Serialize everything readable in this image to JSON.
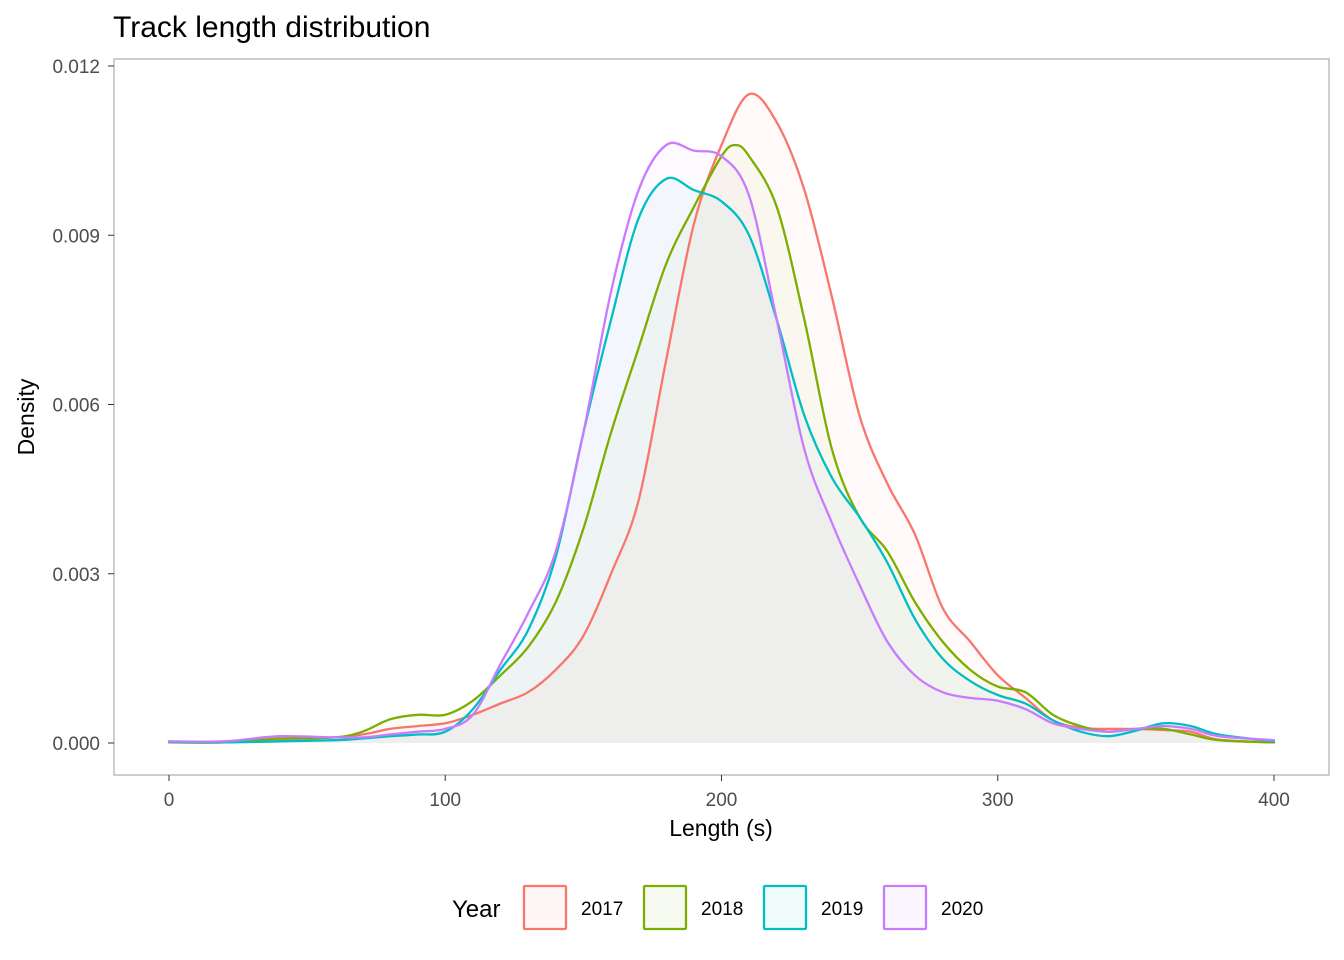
{
  "chart_data": {
    "type": "area",
    "title": "Track length distribution",
    "xlabel": "Length (s)",
    "ylabel": "Density",
    "xlim": [
      0,
      400
    ],
    "ylim": [
      0,
      0.012
    ],
    "x_ticks": [
      0,
      100,
      200,
      300,
      400
    ],
    "x_tick_labels": [
      "0",
      "100",
      "200",
      "300",
      "400"
    ],
    "y_ticks": [
      0,
      0.003,
      0.006,
      0.009,
      0.012
    ],
    "y_tick_labels": [
      "0.000",
      "0.003",
      "0.006",
      "0.009",
      "0.012"
    ],
    "grid": false,
    "legend": {
      "title": "Year",
      "position": "bottom"
    },
    "series": [
      {
        "name": "2017",
        "color": "#F8766D",
        "points": [
          [
            0,
            2e-05
          ],
          [
            20,
            1e-05
          ],
          [
            40,
            6e-05
          ],
          [
            60,
            0.0001
          ],
          [
            70,
            0.00015
          ],
          [
            80,
            0.00025
          ],
          [
            90,
            0.0003
          ],
          [
            100,
            0.00035
          ],
          [
            110,
            0.0005
          ],
          [
            120,
            0.0007
          ],
          [
            130,
            0.0009
          ],
          [
            140,
            0.0013
          ],
          [
            150,
            0.0019
          ],
          [
            160,
            0.003
          ],
          [
            170,
            0.0043
          ],
          [
            180,
            0.0068
          ],
          [
            190,
            0.0092
          ],
          [
            200,
            0.0106
          ],
          [
            210,
            0.0115
          ],
          [
            220,
            0.011
          ],
          [
            230,
            0.0098
          ],
          [
            240,
            0.0079
          ],
          [
            250,
            0.0058
          ],
          [
            260,
            0.0046
          ],
          [
            270,
            0.0037
          ],
          [
            280,
            0.0024
          ],
          [
            290,
            0.0018
          ],
          [
            300,
            0.0012
          ],
          [
            310,
            0.0008
          ],
          [
            320,
            0.0004
          ],
          [
            330,
            0.00027
          ],
          [
            340,
            0.00025
          ],
          [
            350,
            0.00025
          ],
          [
            360,
            0.00023
          ],
          [
            370,
            0.0002
          ],
          [
            380,
            6e-05
          ],
          [
            400,
            1e-05
          ]
        ]
      },
      {
        "name": "2018",
        "color": "#7CAE00",
        "points": [
          [
            0,
            1e-05
          ],
          [
            20,
            1e-05
          ],
          [
            40,
            8e-05
          ],
          [
            60,
            0.0001
          ],
          [
            70,
            0.0002
          ],
          [
            80,
            0.00042
          ],
          [
            90,
            0.0005
          ],
          [
            100,
            0.0005
          ],
          [
            110,
            0.00075
          ],
          [
            120,
            0.0012
          ],
          [
            130,
            0.0017
          ],
          [
            140,
            0.0025
          ],
          [
            150,
            0.0038
          ],
          [
            160,
            0.0055
          ],
          [
            170,
            0.007
          ],
          [
            180,
            0.0085
          ],
          [
            190,
            0.0095
          ],
          [
            200,
            0.0104
          ],
          [
            205,
            0.0106
          ],
          [
            210,
            0.0104
          ],
          [
            220,
            0.0095
          ],
          [
            230,
            0.0075
          ],
          [
            240,
            0.0052
          ],
          [
            250,
            0.004
          ],
          [
            260,
            0.0034
          ],
          [
            270,
            0.0025
          ],
          [
            280,
            0.0018
          ],
          [
            290,
            0.0013
          ],
          [
            300,
            0.001
          ],
          [
            310,
            0.0009
          ],
          [
            320,
            0.0005
          ],
          [
            330,
            0.0003
          ],
          [
            340,
            0.0002
          ],
          [
            350,
            0.00025
          ],
          [
            360,
            0.00025
          ],
          [
            370,
            0.00015
          ],
          [
            380,
            5e-05
          ],
          [
            400,
            1e-05
          ]
        ]
      },
      {
        "name": "2019",
        "color": "#00BFC4",
        "points": [
          [
            0,
            2e-05
          ],
          [
            20,
            1e-05
          ],
          [
            40,
            3e-05
          ],
          [
            60,
            5e-05
          ],
          [
            70,
            8e-05
          ],
          [
            80,
            0.00012
          ],
          [
            90,
            0.00015
          ],
          [
            100,
            0.0002
          ],
          [
            110,
            0.0006
          ],
          [
            120,
            0.0013
          ],
          [
            130,
            0.002
          ],
          [
            140,
            0.0033
          ],
          [
            150,
            0.0055
          ],
          [
            160,
            0.0075
          ],
          [
            170,
            0.0093
          ],
          [
            180,
            0.01
          ],
          [
            190,
            0.0098
          ],
          [
            200,
            0.0096
          ],
          [
            210,
            0.009
          ],
          [
            220,
            0.0075
          ],
          [
            230,
            0.0058
          ],
          [
            240,
            0.0047
          ],
          [
            250,
            0.004
          ],
          [
            260,
            0.0032
          ],
          [
            270,
            0.0022
          ],
          [
            280,
            0.0015
          ],
          [
            290,
            0.0011
          ],
          [
            300,
            0.00085
          ],
          [
            310,
            0.0007
          ],
          [
            320,
            0.0004
          ],
          [
            330,
            0.0002
          ],
          [
            340,
            0.00012
          ],
          [
            350,
            0.00022
          ],
          [
            360,
            0.00035
          ],
          [
            370,
            0.0003
          ],
          [
            380,
            0.00015
          ],
          [
            400,
            3e-05
          ]
        ]
      },
      {
        "name": "2020",
        "color": "#C77CFF",
        "points": [
          [
            0,
            3e-05
          ],
          [
            20,
            3e-05
          ],
          [
            40,
            0.00012
          ],
          [
            60,
            0.0001
          ],
          [
            70,
            0.0001
          ],
          [
            80,
            0.00015
          ],
          [
            90,
            0.0002
          ],
          [
            100,
            0.00025
          ],
          [
            110,
            0.0005
          ],
          [
            120,
            0.0014
          ],
          [
            130,
            0.0023
          ],
          [
            140,
            0.0034
          ],
          [
            150,
            0.0055
          ],
          [
            160,
            0.008
          ],
          [
            170,
            0.0098
          ],
          [
            180,
            0.0106
          ],
          [
            190,
            0.0105
          ],
          [
            200,
            0.0104
          ],
          [
            210,
            0.0097
          ],
          [
            220,
            0.0075
          ],
          [
            230,
            0.0052
          ],
          [
            240,
            0.0039
          ],
          [
            250,
            0.0028
          ],
          [
            260,
            0.0018
          ],
          [
            270,
            0.0012
          ],
          [
            280,
            0.0009
          ],
          [
            290,
            0.0008
          ],
          [
            300,
            0.00075
          ],
          [
            310,
            0.0006
          ],
          [
            320,
            0.00035
          ],
          [
            330,
            0.00025
          ],
          [
            340,
            0.0002
          ],
          [
            350,
            0.00025
          ],
          [
            360,
            0.0003
          ],
          [
            370,
            0.00025
          ],
          [
            380,
            0.00012
          ],
          [
            400,
            5e-05
          ]
        ]
      }
    ]
  }
}
